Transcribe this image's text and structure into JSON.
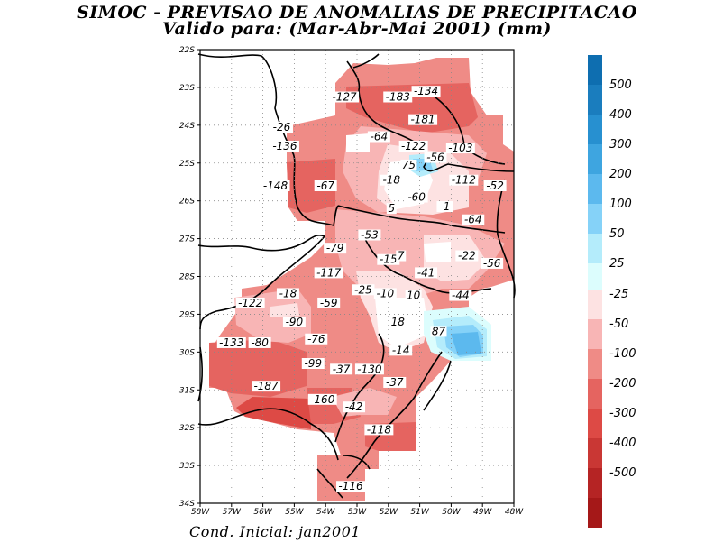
{
  "title": {
    "line1": "SIMOC - PREVISAO DE ANOMALIAS DE PRECIPITACAO",
    "line2": "Valido para: (Mar-Abr-Mai 2001) (mm)"
  },
  "footer": "Cond. Inicial: jan2001",
  "map": {
    "lat_ticks": [
      "22S",
      "23S",
      "24S",
      "25S",
      "26S",
      "27S",
      "28S",
      "29S",
      "30S",
      "31S",
      "32S",
      "33S",
      "34S"
    ],
    "lon_ticks": [
      "58W",
      "57W",
      "56W",
      "55W",
      "54W",
      "53W",
      "52W",
      "51W",
      "50W",
      "49W",
      "48W"
    ],
    "lon_range": [
      -58,
      -48
    ],
    "lat_range": [
      -34,
      -22
    ],
    "value_labels": [
      {
        "text": "-127",
        "lon": -53.4,
        "lat": -23.3
      },
      {
        "text": "-183",
        "lon": -51.7,
        "lat": -23.3
      },
      {
        "text": "-134",
        "lon": -50.8,
        "lat": -23.15
      },
      {
        "text": "-181",
        "lon": -50.9,
        "lat": -23.9
      },
      {
        "text": "-26",
        "lon": -55.4,
        "lat": -24.1
      },
      {
        "text": "-64",
        "lon": -52.3,
        "lat": -24.35
      },
      {
        "text": "-136",
        "lon": -55.3,
        "lat": -24.6
      },
      {
        "text": "-122",
        "lon": -51.2,
        "lat": -24.6
      },
      {
        "text": "-103",
        "lon": -49.7,
        "lat": -24.65
      },
      {
        "text": "-56",
        "lon": -50.5,
        "lat": -24.9
      },
      {
        "text": "75",
        "lon": -51.35,
        "lat": -25.1
      },
      {
        "text": "-18",
        "lon": -51.9,
        "lat": -25.5
      },
      {
        "text": "-67",
        "lon": -54.0,
        "lat": -25.65
      },
      {
        "text": "-148",
        "lon": -55.6,
        "lat": -25.65
      },
      {
        "text": "-112",
        "lon": -49.6,
        "lat": -25.5
      },
      {
        "text": "-52",
        "lon": -48.6,
        "lat": -25.65
      },
      {
        "text": "-60",
        "lon": -51.1,
        "lat": -25.95
      },
      {
        "text": "-1",
        "lon": -50.2,
        "lat": -26.2
      },
      {
        "text": "5",
        "lon": -51.9,
        "lat": -26.25
      },
      {
        "text": "-64",
        "lon": -49.3,
        "lat": -26.55
      },
      {
        "text": "-53",
        "lon": -52.6,
        "lat": -26.95
      },
      {
        "text": "-79",
        "lon": -53.7,
        "lat": -27.3
      },
      {
        "text": "-15",
        "lon": -52.0,
        "lat": -27.6
      },
      {
        "text": "7",
        "lon": -51.6,
        "lat": -27.5
      },
      {
        "text": "-22",
        "lon": -49.5,
        "lat": -27.5
      },
      {
        "text": "-56",
        "lon": -48.7,
        "lat": -27.7
      },
      {
        "text": "-117",
        "lon": -53.9,
        "lat": -27.95
      },
      {
        "text": "-41",
        "lon": -50.8,
        "lat": -27.95
      },
      {
        "text": "-18",
        "lon": -55.2,
        "lat": -28.5
      },
      {
        "text": "-25",
        "lon": -52.8,
        "lat": -28.4
      },
      {
        "text": "-10",
        "lon": -52.1,
        "lat": -28.5
      },
      {
        "text": "10",
        "lon": -51.2,
        "lat": -28.55
      },
      {
        "text": "-44",
        "lon": -49.7,
        "lat": -28.55
      },
      {
        "text": "-122",
        "lon": -56.4,
        "lat": -28.75
      },
      {
        "text": "-59",
        "lon": -53.9,
        "lat": -28.75
      },
      {
        "text": "-90",
        "lon": -55.0,
        "lat": -29.25
      },
      {
        "text": "18",
        "lon": -51.7,
        "lat": -29.25
      },
      {
        "text": "87",
        "lon": -50.4,
        "lat": -29.5
      },
      {
        "text": "-133",
        "lon": -57.0,
        "lat": -29.8
      },
      {
        "text": "-80",
        "lon": -56.1,
        "lat": -29.8
      },
      {
        "text": "-76",
        "lon": -54.3,
        "lat": -29.7
      },
      {
        "text": "-14",
        "lon": -51.6,
        "lat": -30.0
      },
      {
        "text": "-99",
        "lon": -54.4,
        "lat": -30.35
      },
      {
        "text": "-37",
        "lon": -53.5,
        "lat": -30.5
      },
      {
        "text": "-130",
        "lon": -52.6,
        "lat": -30.5
      },
      {
        "text": "-37",
        "lon": -51.8,
        "lat": -30.85
      },
      {
        "text": "-187",
        "lon": -55.9,
        "lat": -30.95
      },
      {
        "text": "-160",
        "lon": -54.1,
        "lat": -31.3
      },
      {
        "text": "-42",
        "lon": -53.1,
        "lat": -31.5
      },
      {
        "text": "-118",
        "lon": -52.3,
        "lat": -32.1
      },
      {
        "text": "-116",
        "lon": -53.2,
        "lat": -33.6
      }
    ]
  },
  "legend": {
    "upper": [
      {
        "label": "500",
        "color": "#1a7dbe"
      },
      {
        "label": "400",
        "color": "#2790d0"
      },
      {
        "label": "300",
        "color": "#3ea5e0"
      },
      {
        "label": "200",
        "color": "#5cb9ee"
      },
      {
        "label": "100",
        "color": "#85d2f8"
      },
      {
        "label": "50",
        "color": "#b4ecfb"
      },
      {
        "label": "25",
        "color": "#dcfdfd"
      }
    ],
    "top_color": "#0e6eb0",
    "lower": [
      {
        "label": "-25",
        "color": "#fde2e2"
      },
      {
        "label": "-50",
        "color": "#f8b5b5"
      },
      {
        "label": "-100",
        "color": "#ef8b86"
      },
      {
        "label": "-200",
        "color": "#e56460"
      },
      {
        "label": "-300",
        "color": "#dd4a45"
      },
      {
        "label": "-400",
        "color": "#c93734"
      },
      {
        "label": "-500",
        "color": "#b52424"
      }
    ],
    "bottom_color": "#a51818"
  }
}
